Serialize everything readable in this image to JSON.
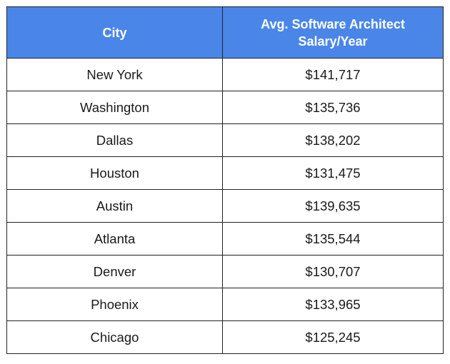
{
  "table": {
    "headers": {
      "city": "City",
      "salary_line1": "Avg. Software Architect",
      "salary_line2": "Salary/Year"
    },
    "rows": [
      {
        "city": "New York",
        "salary": "$141,717"
      },
      {
        "city": "Washington",
        "salary": "$135,736"
      },
      {
        "city": "Dallas",
        "salary": "$138,202"
      },
      {
        "city": "Houston",
        "salary": "$131,475"
      },
      {
        "city": "Austin",
        "salary": "$139,635"
      },
      {
        "city": "Atlanta",
        "salary": "$135,544"
      },
      {
        "city": "Denver",
        "salary": "$130,707"
      },
      {
        "city": "Phoenix",
        "salary": "$133,965"
      },
      {
        "city": "Chicago",
        "salary": "$125,245"
      }
    ]
  },
  "colors": {
    "header_bg": "#4a86e8",
    "header_text": "#ffffff",
    "border": "#222222"
  }
}
